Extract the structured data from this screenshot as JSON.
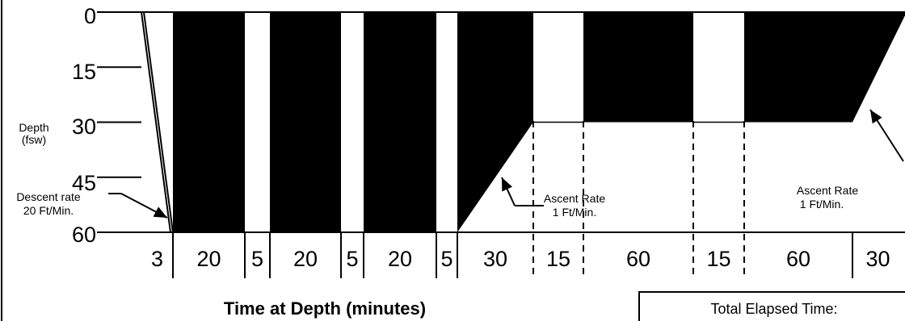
{
  "chart_data": {
    "type": "area",
    "y_axis": {
      "label_line1": "Depth",
      "label_line2": "(fsw)",
      "ticks": [
        0,
        15,
        30,
        45,
        60
      ],
      "range": [
        0,
        60
      ],
      "inverted": true
    },
    "x_axis": {
      "title": "Time at Depth (minutes)"
    },
    "segments": [
      {
        "minutes": "3",
        "label": "3",
        "phase": "descent",
        "depth_start": 0,
        "depth_end": 60
      },
      {
        "minutes": "20",
        "label": "20",
        "phase": "bottom",
        "depth_start": 60,
        "depth_end": 60
      },
      {
        "minutes": "5",
        "label": "5",
        "phase": "break",
        "depth_start": 60,
        "depth_end": 60
      },
      {
        "minutes": "20",
        "label": "20",
        "phase": "bottom",
        "depth_start": 60,
        "depth_end": 60
      },
      {
        "minutes": "5",
        "label": "5",
        "phase": "break",
        "depth_start": 60,
        "depth_end": 60
      },
      {
        "minutes": "20",
        "label": "20",
        "phase": "bottom",
        "depth_start": 60,
        "depth_end": 60
      },
      {
        "minutes": "5",
        "label": "5",
        "phase": "break",
        "depth_start": 60,
        "depth_end": 60
      },
      {
        "minutes": "30",
        "label": "30",
        "phase": "ascent",
        "depth_start": 60,
        "depth_end": 30
      },
      {
        "minutes": "15",
        "label": "15",
        "phase": "break",
        "depth_start": 30,
        "depth_end": 30
      },
      {
        "minutes": "60",
        "label": "60",
        "phase": "stop",
        "depth_start": 30,
        "depth_end": 30
      },
      {
        "minutes": "15",
        "label": "15",
        "phase": "break",
        "depth_start": 30,
        "depth_end": 30
      },
      {
        "minutes": "60",
        "label": "60",
        "phase": "stop",
        "depth_start": 30,
        "depth_end": 30
      },
      {
        "minutes": "30",
        "label": "30",
        "phase": "ascent",
        "depth_start": 30,
        "depth_end": 0
      }
    ],
    "annotations": {
      "descent_line1": "Descent rate",
      "descent_line2": "20 Ft/Min.",
      "ascent1_line1": "Ascent Rate",
      "ascent1_line2": "1 Ft/Min.",
      "ascent2_line1": "Ascent Rate",
      "ascent2_line2": "1 Ft/Min."
    },
    "total_box_label": "Total Elapsed Time:",
    "colors": {
      "fill": "#000000",
      "background": "#ffffff"
    }
  }
}
